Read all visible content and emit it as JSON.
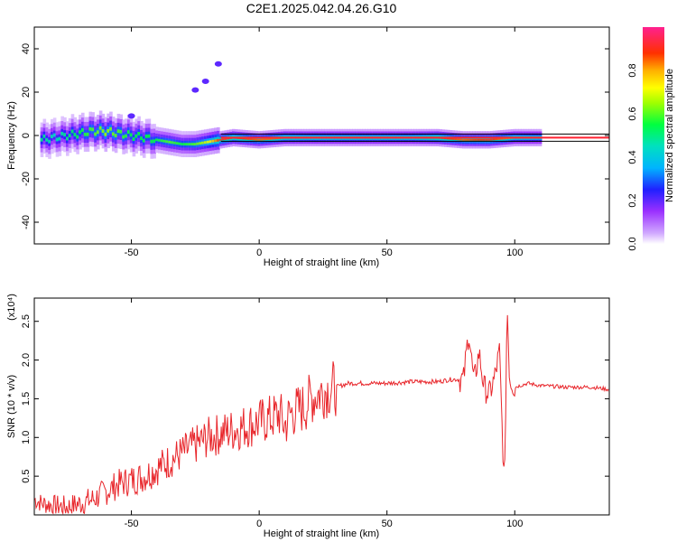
{
  "title": "C2E1.2025.042.04.26.G10",
  "chart_data": [
    {
      "type": "heatmap",
      "xlabel": "Height of straight line (km)",
      "ylabel": "Frequency (Hz)",
      "xlim": [
        -88,
        137
      ],
      "ylim": [
        -50,
        50
      ],
      "xticks": [
        -50,
        0,
        50,
        100
      ],
      "yticks": [
        -40,
        -20,
        0,
        20,
        40
      ],
      "colorbar": {
        "label": "Normalized spectral amplitude",
        "range": [
          0,
          1
        ],
        "ticks": [
          0.0,
          0.2,
          0.4,
          0.6,
          0.8
        ]
      },
      "ridge": {
        "x": [
          -85,
          -80,
          -75,
          -70,
          -65,
          -60,
          -55,
          -50,
          -45,
          -40,
          -35,
          -30,
          -25,
          -20,
          -15,
          -10,
          0,
          10,
          20,
          30,
          40,
          50,
          60,
          70,
          80,
          90,
          100,
          110
        ],
        "freq": [
          -2,
          -1,
          0,
          1,
          2,
          2,
          1,
          0,
          -1,
          -2,
          -3,
          -4,
          -4,
          -3,
          -2,
          -1,
          -2,
          -1,
          -1,
          -1,
          -1,
          -1,
          -1,
          -1,
          -2,
          -2,
          -1,
          -1
        ],
        "amplitude": [
          0.5,
          0.45,
          0.5,
          0.55,
          0.6,
          0.65,
          0.6,
          0.55,
          0.55,
          0.55,
          0.6,
          0.55,
          0.6,
          0.7,
          0.9,
          0.9,
          0.85,
          0.85,
          0.8,
          0.8,
          0.8,
          0.8,
          0.8,
          0.9,
          0.85,
          0.9,
          0.8,
          0.75
        ]
      },
      "reference_line": {
        "freq": -1
      },
      "outliers": [
        {
          "x": -25,
          "freq": 21
        },
        {
          "x": -21,
          "freq": 25
        },
        {
          "x": -16,
          "freq": 33
        },
        {
          "x": -50,
          "freq": 9
        }
      ]
    },
    {
      "type": "line",
      "xlabel": "Height of straight line (km)",
      "ylabel": "SNR (10 * v/v)",
      "y_scale_note": "(x10⁴)",
      "xlim": [
        -88,
        137
      ],
      "ylim": [
        0,
        2.8
      ],
      "xticks": [
        -50,
        0,
        50,
        100
      ],
      "yticks": [
        0.5,
        1.0,
        1.5,
        2.0,
        2.5
      ],
      "color": "#e8262b",
      "x": [
        -88,
        -85,
        -80,
        -75,
        -70,
        -65,
        -60,
        -55,
        -50,
        -45,
        -40,
        -35,
        -30,
        -25,
        -20,
        -15,
        -10,
        -5,
        0,
        5,
        8,
        10,
        12,
        15,
        18,
        20,
        25,
        30,
        35,
        40,
        50,
        60,
        70,
        75,
        80,
        82,
        84,
        86,
        88,
        90,
        92,
        94,
        96,
        97,
        98,
        100,
        105,
        110,
        120,
        130,
        137
      ],
      "y": [
        0.2,
        0.15,
        0.12,
        0.1,
        0.15,
        0.2,
        0.3,
        0.4,
        0.45,
        0.5,
        0.6,
        0.7,
        0.8,
        0.9,
        1.0,
        1.05,
        1.1,
        1.15,
        1.2,
        1.25,
        1.3,
        1.15,
        1.3,
        1.35,
        1.4,
        1.5,
        1.6,
        1.65,
        1.7,
        1.7,
        1.7,
        1.72,
        1.72,
        1.75,
        1.75,
        2.38,
        1.7,
        2.1,
        1.65,
        1.55,
        1.75,
        2.1,
        0.3,
        2.75,
        1.75,
        1.65,
        1.7,
        1.67,
        1.65,
        1.65,
        1.62
      ]
    }
  ]
}
